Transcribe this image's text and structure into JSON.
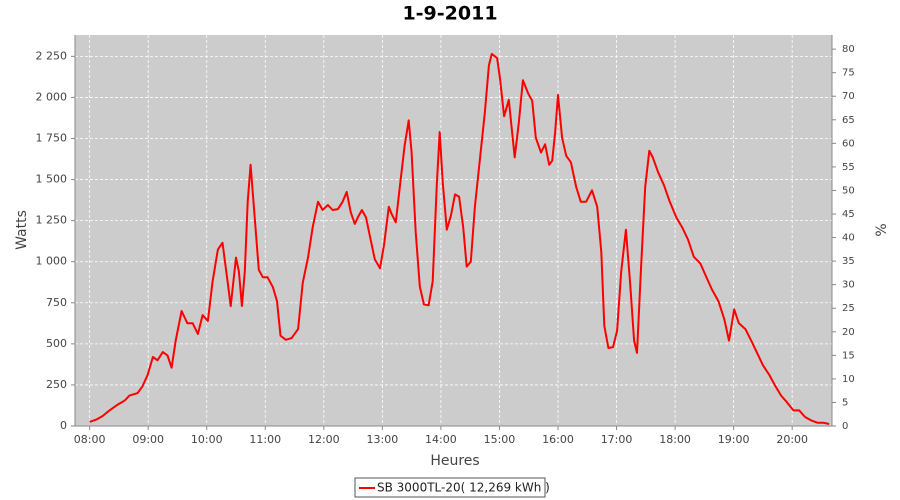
{
  "chart_data": {
    "type": "line",
    "title": "1-9-2011",
    "x_label": "Heures",
    "y_label": "Watts",
    "y2_label": "%",
    "x": [
      8.0,
      8.12,
      8.22,
      8.34,
      8.48,
      8.6,
      8.68,
      8.82,
      8.9,
      8.99,
      9.08,
      9.16,
      9.25,
      9.33,
      9.4,
      9.47,
      9.57,
      9.67,
      9.76,
      9.85,
      9.93,
      10.02,
      10.1,
      10.19,
      10.27,
      10.36,
      10.41,
      10.5,
      10.55,
      10.6,
      10.65,
      10.7,
      10.75,
      10.82,
      10.89,
      10.96,
      11.04,
      11.13,
      11.2,
      11.26,
      11.35,
      11.45,
      11.56,
      11.64,
      11.73,
      11.81,
      11.9,
      11.98,
      12.07,
      12.15,
      12.24,
      12.32,
      12.39,
      12.46,
      12.53,
      12.58,
      12.65,
      12.72,
      12.79,
      12.87,
      12.96,
      13.03,
      13.11,
      13.16,
      13.23,
      13.3,
      13.38,
      13.45,
      13.5,
      13.57,
      13.64,
      13.71,
      13.79,
      13.86,
      13.93,
      13.98,
      14.03,
      14.1,
      14.17,
      14.24,
      14.31,
      14.38,
      14.44,
      14.51,
      14.58,
      14.67,
      14.75,
      14.82,
      14.87,
      14.96,
      15.01,
      15.08,
      15.16,
      15.26,
      15.33,
      15.4,
      15.49,
      15.56,
      15.62,
      15.71,
      15.78,
      15.85,
      15.9,
      15.95,
      16.0,
      16.07,
      16.14,
      16.22,
      16.31,
      16.39,
      16.48,
      16.58,
      16.67,
      16.74,
      16.79,
      16.86,
      16.94,
      17.01,
      17.08,
      17.16,
      17.23,
      17.3,
      17.35,
      17.42,
      17.49,
      17.56,
      17.62,
      17.71,
      17.81,
      17.91,
      18.02,
      18.12,
      18.22,
      18.32,
      18.43,
      18.53,
      18.63,
      18.74,
      18.84,
      18.92,
      19.01,
      19.09,
      19.2,
      19.3,
      19.4,
      19.5,
      19.61,
      19.71,
      19.81,
      19.91,
      20.02,
      20.12,
      20.22,
      20.32,
      20.43,
      20.53,
      20.63
    ],
    "series": [
      {
        "name": "SB 3000TL-20( 12,269 kWh  )",
        "color": "#ff0000",
        "values": [
          25,
          40,
          60,
          95,
          130,
          155,
          185,
          200,
          240,
          310,
          420,
          400,
          450,
          430,
          355,
          520,
          700,
          625,
          625,
          560,
          675,
          640,
          880,
          1075,
          1115,
          870,
          730,
          1025,
          940,
          730,
          940,
          1365,
          1590,
          1270,
          950,
          905,
          905,
          845,
          760,
          550,
          525,
          535,
          590,
          870,
          1025,
          1210,
          1365,
          1315,
          1345,
          1315,
          1320,
          1365,
          1425,
          1300,
          1230,
          1270,
          1315,
          1270,
          1150,
          1015,
          960,
          1105,
          1335,
          1290,
          1240,
          1460,
          1705,
          1860,
          1665,
          1180,
          850,
          740,
          735,
          880,
          1470,
          1790,
          1485,
          1195,
          1280,
          1410,
          1395,
          1210,
          970,
          1000,
          1335,
          1635,
          1905,
          2195,
          2265,
          2240,
          2115,
          1885,
          1985,
          1635,
          1845,
          2105,
          2025,
          1980,
          1755,
          1665,
          1715,
          1590,
          1615,
          1785,
          2015,
          1755,
          1645,
          1605,
          1455,
          1365,
          1365,
          1435,
          1335,
          1060,
          610,
          475,
          480,
          580,
          940,
          1195,
          880,
          520,
          445,
          970,
          1455,
          1675,
          1635,
          1545,
          1465,
          1365,
          1270,
          1210,
          1135,
          1030,
          990,
          910,
          830,
          760,
          650,
          520,
          710,
          625,
          590,
          520,
          445,
          370,
          310,
          245,
          185,
          145,
          95,
          95,
          55,
          35,
          20,
          20,
          12
        ]
      }
    ],
    "xlim": [
      7.75,
      20.68
    ],
    "xticks": [
      {
        "value": 8,
        "label": "08:00"
      },
      {
        "value": 9,
        "label": "09:00"
      },
      {
        "value": 10,
        "label": "10:00"
      },
      {
        "value": 11,
        "label": "11:00"
      },
      {
        "value": 12,
        "label": "12:00"
      },
      {
        "value": 13,
        "label": "13:00"
      },
      {
        "value": 14,
        "label": "14:00"
      },
      {
        "value": 15,
        "label": "15:00"
      },
      {
        "value": 16,
        "label": "16:00"
      },
      {
        "value": 17,
        "label": "17:00"
      },
      {
        "value": 18,
        "label": "18:00"
      },
      {
        "value": 19,
        "label": "19:00"
      },
      {
        "value": 20,
        "label": "20:00"
      }
    ],
    "ylim": [
      0,
      2380
    ],
    "yticks": [
      0,
      250,
      500,
      750,
      {
        "value": 1000,
        "label": "1 000"
      },
      {
        "value": 1250,
        "label": "1 250"
      },
      {
        "value": 1500,
        "label": "1 500"
      },
      {
        "value": 1750,
        "label": "1 750"
      },
      {
        "value": 2000,
        "label": "2 000"
      },
      {
        "value": 2250,
        "label": "2 250"
      }
    ],
    "y2lim": [
      0,
      83
    ],
    "y2ticks": [
      0,
      5,
      10,
      15,
      20,
      25,
      30,
      35,
      40,
      45,
      50,
      55,
      60,
      65,
      70,
      75,
      80
    ],
    "grid": true,
    "legend": "bottom"
  }
}
